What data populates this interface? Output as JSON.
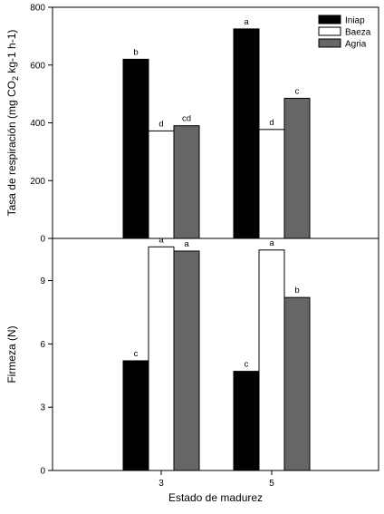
{
  "chart_data": [
    {
      "type": "bar",
      "ylabel": "Tasa de respiración (mg CO2 kg-1 h-1)",
      "ylabel_parts": [
        "Tasa de respiración (mg CO",
        "2",
        " kg-1 h-1)"
      ],
      "ylim": [
        0,
        800
      ],
      "yticks": [
        0,
        200,
        400,
        600,
        800
      ],
      "categories": [
        "3",
        "5"
      ],
      "series": [
        {
          "name": "Iniap",
          "values": [
            620,
            725
          ],
          "labels": [
            "b",
            "a"
          ],
          "color": "#000000"
        },
        {
          "name": "Baeza",
          "values": [
            372,
            377
          ],
          "labels": [
            "d",
            "d"
          ],
          "color": "#ffffff"
        },
        {
          "name": "Agria",
          "values": [
            390,
            485
          ],
          "labels": [
            "cd",
            "c"
          ],
          "color": "#666666"
        }
      ],
      "legend": "top-right"
    },
    {
      "type": "bar",
      "ylabel": "Firmeza (N)",
      "xlabel": "Estado de madurez",
      "ylim": [
        0,
        11
      ],
      "yticks": [
        0,
        3,
        6,
        9
      ],
      "categories": [
        "3",
        "5"
      ],
      "series": [
        {
          "name": "Iniap",
          "values": [
            5.2,
            4.7
          ],
          "labels": [
            "c",
            "c"
          ],
          "color": "#000000"
        },
        {
          "name": "Baeza",
          "values": [
            10.6,
            10.45
          ],
          "labels": [
            "a",
            "a"
          ],
          "color": "#ffffff"
        },
        {
          "name": "Agria",
          "values": [
            10.4,
            8.2
          ],
          "labels": [
            "a",
            "b"
          ],
          "color": "#666666"
        }
      ]
    }
  ]
}
